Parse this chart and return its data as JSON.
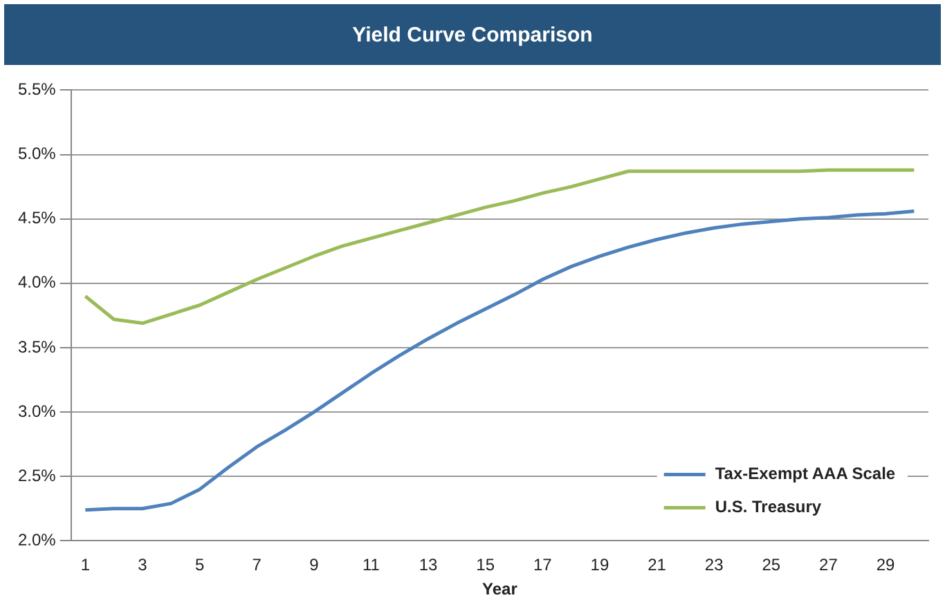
{
  "chart_data": {
    "type": "line",
    "title": "Yield Curve Comparison",
    "xlabel": "Year",
    "x": [
      1,
      2,
      3,
      4,
      5,
      6,
      7,
      8,
      9,
      10,
      11,
      12,
      13,
      14,
      15,
      16,
      17,
      18,
      19,
      20,
      21,
      22,
      23,
      24,
      25,
      26,
      27,
      28,
      29,
      30
    ],
    "xlim": [
      0.5,
      30.5
    ],
    "xticks": [
      1,
      3,
      5,
      7,
      9,
      11,
      13,
      15,
      17,
      19,
      21,
      23,
      25,
      27,
      29
    ],
    "series": [
      {
        "name": "Tax-Exempt AAA Scale",
        "color": "#4f81bd",
        "values": [
          2.24,
          2.25,
          2.25,
          2.29,
          2.4,
          2.57,
          2.73,
          2.86,
          3.0,
          3.15,
          3.3,
          3.44,
          3.57,
          3.69,
          3.8,
          3.91,
          4.03,
          4.13,
          4.21,
          4.28,
          4.34,
          4.39,
          4.43,
          4.46,
          4.48,
          4.5,
          4.51,
          4.53,
          4.54,
          4.56
        ]
      },
      {
        "name": "U.S. Treasury",
        "color": "#9bbb59",
        "values": [
          3.9,
          3.72,
          3.69,
          3.76,
          3.83,
          3.93,
          4.03,
          4.12,
          4.21,
          4.29,
          4.35,
          4.41,
          4.47,
          4.53,
          4.59,
          4.64,
          4.7,
          4.75,
          4.81,
          4.87,
          4.87,
          4.87,
          4.87,
          4.87,
          4.87,
          4.87,
          4.88,
          4.88,
          4.88,
          4.88
        ]
      }
    ],
    "ylim": [
      2.0,
      5.5
    ],
    "yticks": [
      {
        "value": 2.0,
        "label": "2.0%"
      },
      {
        "value": 2.5,
        "label": "2.5%"
      },
      {
        "value": 3.0,
        "label": "3.0%"
      },
      {
        "value": 3.5,
        "label": "3.5%"
      },
      {
        "value": 4.0,
        "label": "4.0%"
      },
      {
        "value": 4.5,
        "label": "4.5%"
      },
      {
        "value": 5.0,
        "label": "5.0%"
      },
      {
        "value": 5.5,
        "label": "5.5%"
      }
    ],
    "grid": "y",
    "legend": "bottom right",
    "marker": "none",
    "line_style": "solid"
  }
}
